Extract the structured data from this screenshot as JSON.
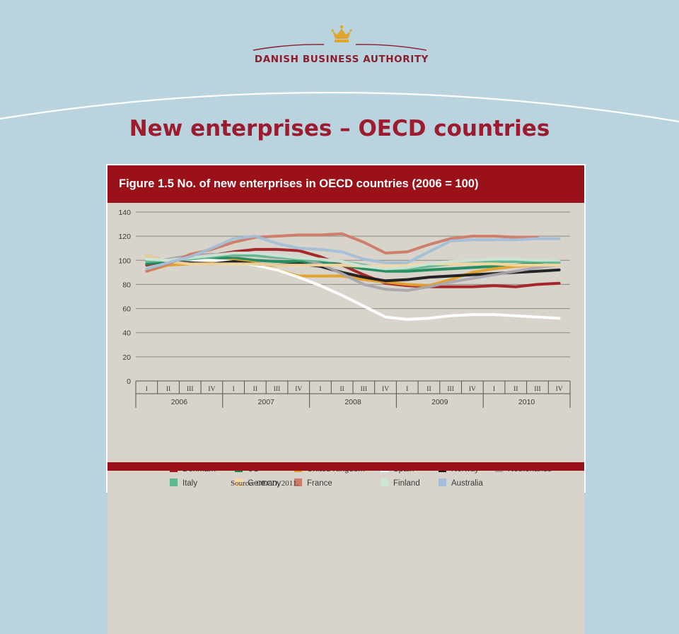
{
  "brand": {
    "name": "Danish Business Authority",
    "logo": "crown-icon"
  },
  "slide": {
    "title": "New enterprises – OECD countries"
  },
  "figure": {
    "header": "Figure 1.5  No. of new enterprises in OECD countries (2006 = 100)",
    "source": "Source: OECD, 2011."
  },
  "chart_data": {
    "type": "line",
    "title": "Figure 1.5  No. of new enterprises in OECD countries (2006 = 100)",
    "ylim": [
      0,
      140
    ],
    "yticks": [
      0,
      20,
      40,
      60,
      80,
      100,
      120,
      140
    ],
    "grid": true,
    "legend_position": "bottom",
    "quarters": [
      "I",
      "II",
      "III",
      "IV",
      "I",
      "II",
      "III",
      "IV",
      "I",
      "II",
      "III",
      "IV",
      "I",
      "II",
      "III",
      "IV",
      "I",
      "II",
      "III",
      "IV"
    ],
    "years": [
      "2006",
      "2007",
      "2008",
      "2009",
      "2010"
    ],
    "series": [
      {
        "name": "Denmark",
        "color": "#a31f24",
        "values": [
          96,
          100,
          100,
          104,
          107,
          109,
          109,
          108,
          103,
          96,
          88,
          81,
          79,
          78,
          78,
          78,
          79,
          78,
          80,
          81
        ]
      },
      {
        "name": "US",
        "color": "#1d8a5c",
        "values": [
          97,
          99,
          102,
          102,
          102,
          100,
          99,
          99,
          98,
          96,
          93,
          91,
          91,
          92,
          93,
          94,
          95,
          96,
          98,
          100
        ]
      },
      {
        "name": "United Kingdom",
        "color": "#e3a029",
        "values": [
          91,
          96,
          97,
          99,
          100,
          98,
          92,
          87,
          87,
          87,
          84,
          82,
          80,
          79,
          84,
          90,
          93,
          95,
          96,
          96
        ]
      },
      {
        "name": "Spain",
        "color": "#ffffff",
        "values": [
          101,
          101,
          100,
          100,
          99,
          96,
          92,
          86,
          79,
          71,
          62,
          53,
          51,
          52,
          54,
          55,
          55,
          54,
          53,
          52
        ]
      },
      {
        "name": "Norway",
        "color": "#1a1a1a",
        "values": [
          104,
          99,
          98,
          97,
          99,
          97,
          96,
          97,
          95,
          90,
          86,
          83,
          84,
          86,
          87,
          88,
          89,
          90,
          91,
          92
        ]
      },
      {
        "name": "Netherlands",
        "color": "#a9a7ad",
        "values": [
          99,
          101,
          104,
          105,
          104,
          104,
          102,
          102,
          97,
          89,
          80,
          76,
          75,
          78,
          82,
          85,
          88,
          91,
          94,
          96
        ]
      },
      {
        "name": "Italy",
        "color": "#5db88f",
        "values": [
          99,
          100,
          101,
          103,
          105,
          104,
          103,
          101,
          100,
          99,
          96,
          93,
          93,
          95,
          97,
          98,
          99,
          99,
          99,
          98
        ]
      },
      {
        "name": "Germany",
        "color": "#f6d8a0",
        "values": [
          104,
          99,
          97,
          97,
          97,
          97,
          96,
          96,
          96,
          96,
          95,
          95,
          96,
          97,
          97,
          97,
          97,
          96,
          96,
          96
        ]
      },
      {
        "name": "France",
        "color": "#cd7b67",
        "values": [
          91,
          97,
          105,
          109,
          115,
          119,
          120,
          121,
          121,
          122,
          115,
          106,
          107,
          113,
          118,
          120,
          120,
          119,
          119,
          null
        ]
      },
      {
        "name": "Finland",
        "color": "#cfe3d6",
        "values": [
          101,
          100,
          102,
          104,
          106,
          106,
          104,
          102,
          101,
          99,
          95,
          93,
          94,
          97,
          99,
          100,
          101,
          101,
          100,
          100
        ]
      },
      {
        "name": "Australia",
        "color": "#a3bfd7",
        "values": [
          93,
          98,
          103,
          110,
          118,
          120,
          114,
          110,
          109,
          107,
          101,
          98,
          98,
          107,
          116,
          117,
          117,
          117,
          118,
          118
        ]
      }
    ]
  }
}
